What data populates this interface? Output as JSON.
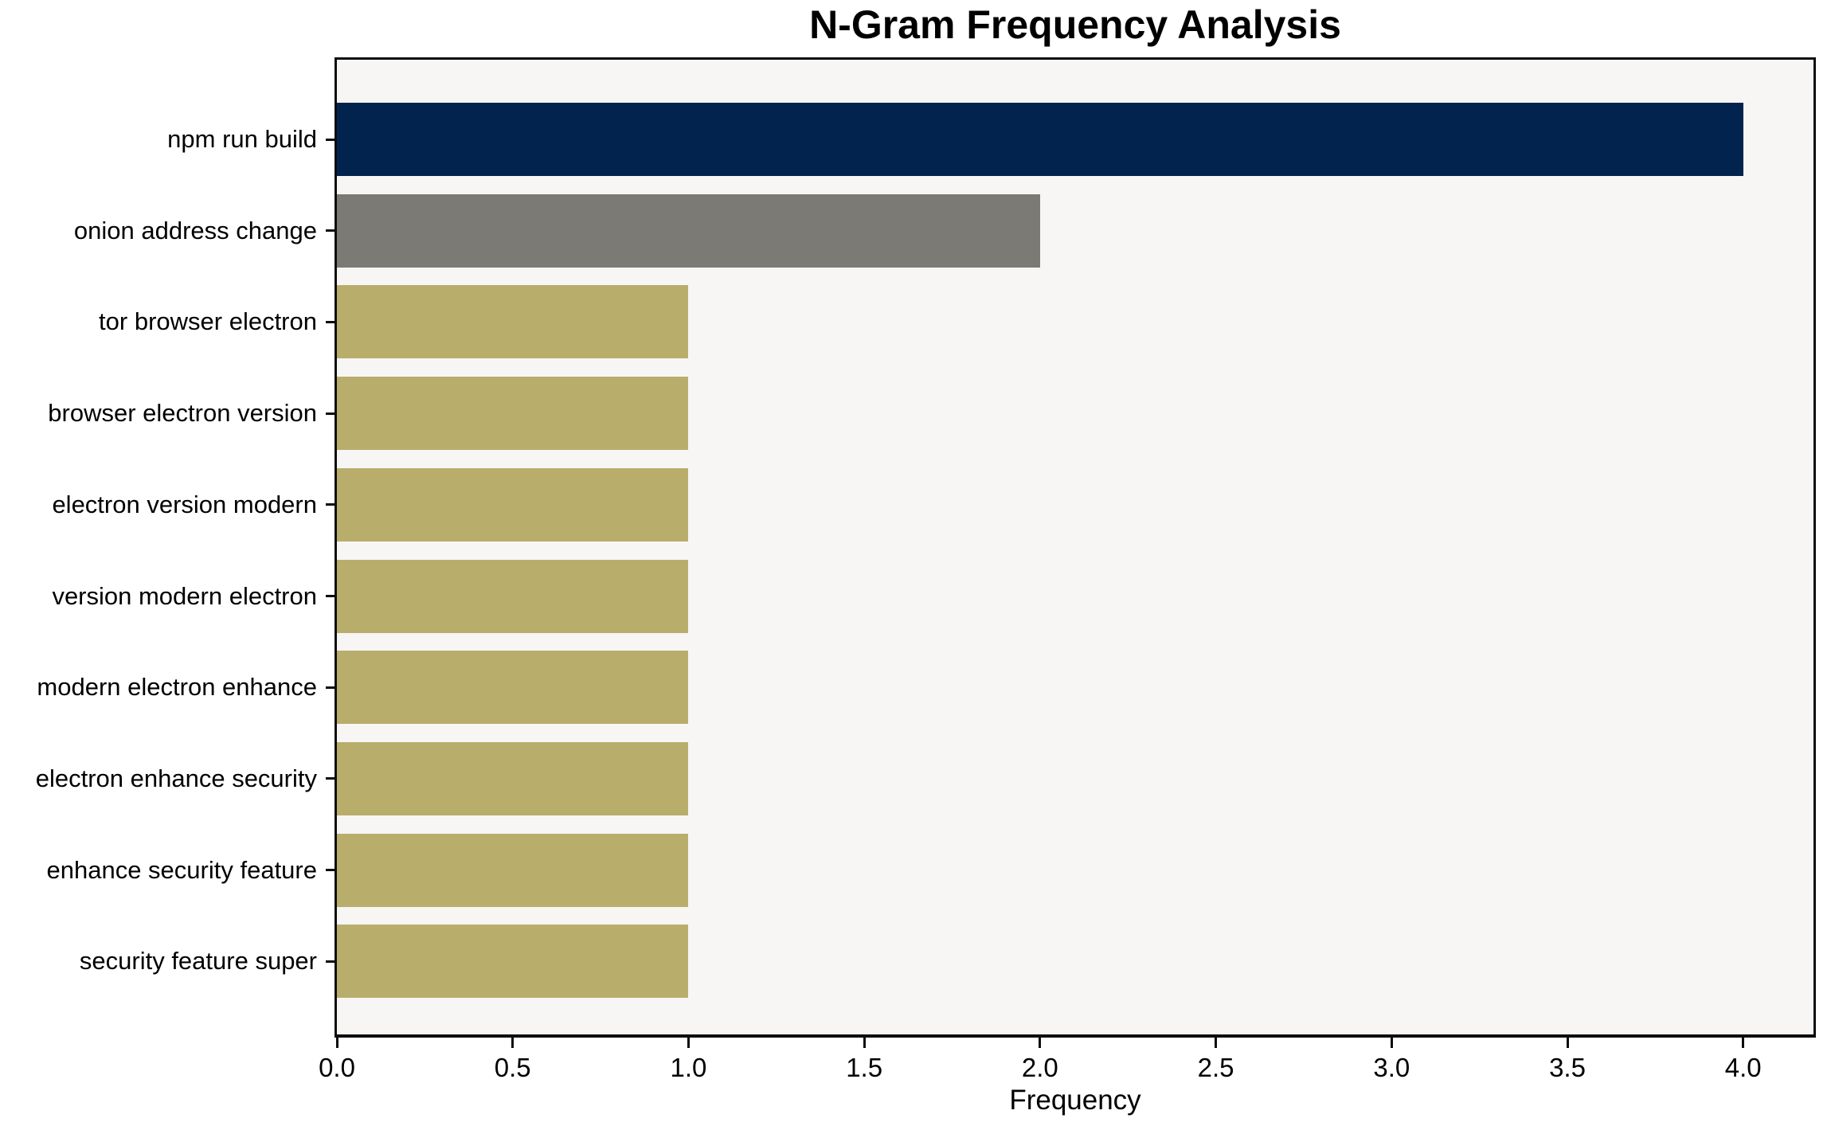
{
  "chart_data": {
    "type": "bar",
    "orientation": "horizontal",
    "title": "N-Gram Frequency Analysis",
    "xlabel": "Frequency",
    "ylabel": "",
    "categories": [
      "npm run build",
      "onion address change",
      "tor browser electron",
      "browser electron version",
      "electron version modern",
      "version modern electron",
      "modern electron enhance",
      "electron enhance security",
      "enhance security feature",
      "security feature super"
    ],
    "values": [
      4,
      2,
      1,
      1,
      1,
      1,
      1,
      1,
      1,
      1
    ],
    "bar_colors": [
      "#02234d",
      "#7b7a75",
      "#b9ad6b",
      "#b9ad6b",
      "#b9ad6b",
      "#b9ad6b",
      "#b9ad6b",
      "#b9ad6b",
      "#b9ad6b",
      "#b9ad6b"
    ],
    "xlim": [
      0.0,
      4.2
    ],
    "xtick_labels": [
      "0.0",
      "0.5",
      "1.0",
      "1.5",
      "2.0",
      "2.5",
      "3.0",
      "3.5",
      "4.0"
    ],
    "grid": false,
    "legend": "none",
    "plot_background": "#f7f6f5",
    "figure_background": "#ffffff",
    "spine_color": "#0d0d0d"
  }
}
